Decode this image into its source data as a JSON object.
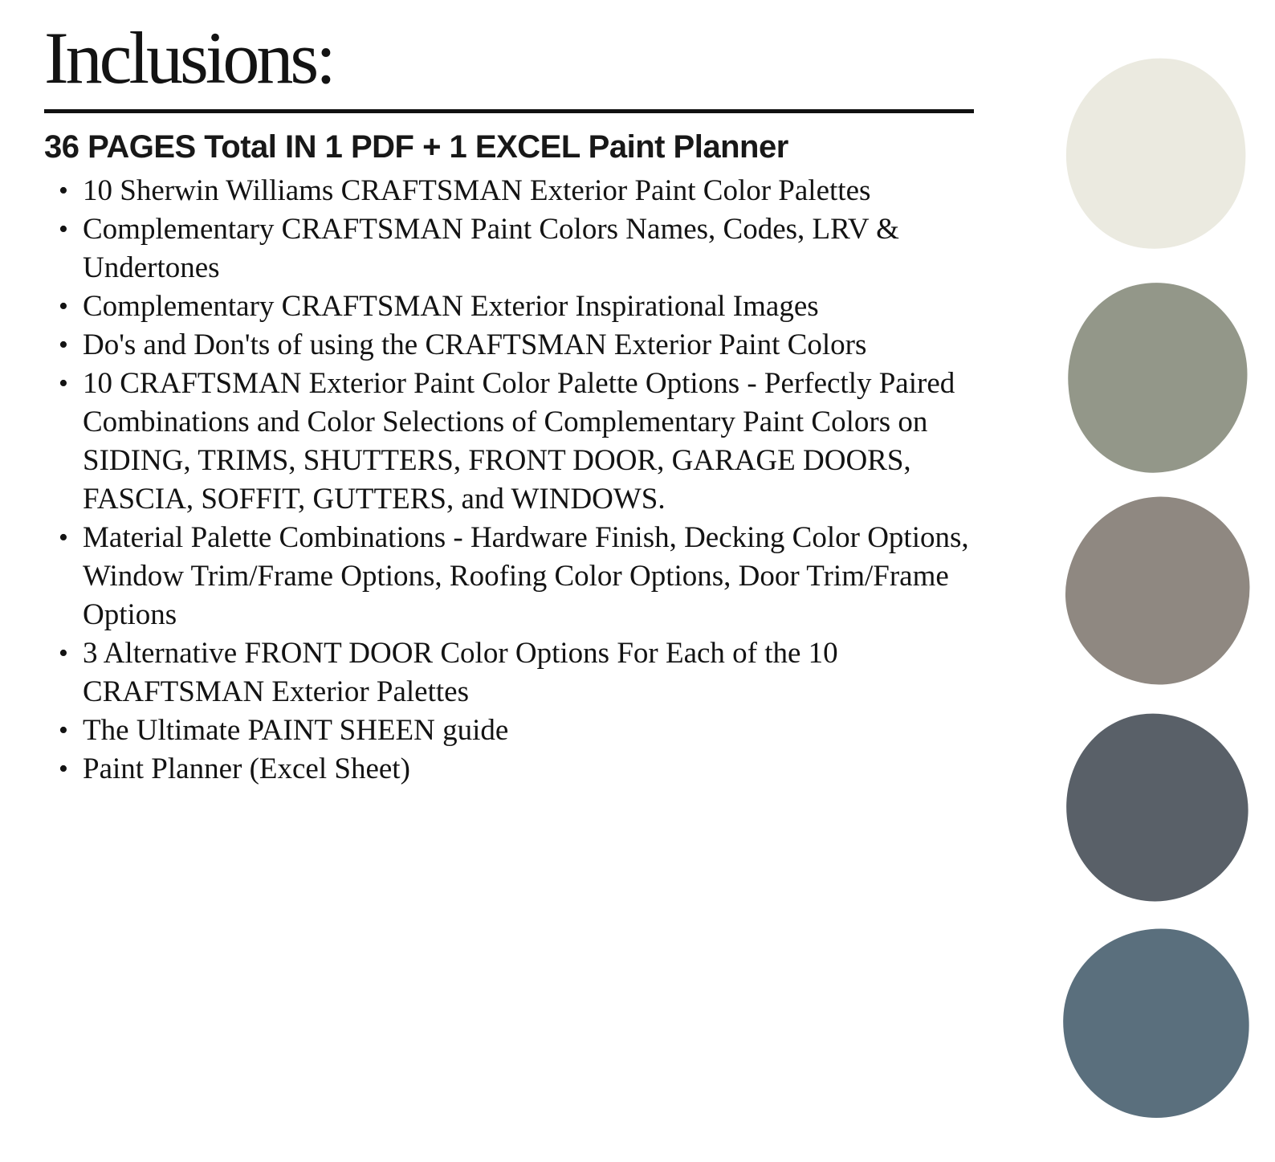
{
  "document": {
    "title": "Inclusions:",
    "heading": "36 PAGES Total IN 1 PDF + 1 EXCEL Paint Planner",
    "bullet_marker": "•",
    "bullets": [
      "10 Sherwin Williams CRAFTSMAN Exterior Paint Color Palettes",
      "Complementary CRAFTSMAN Paint Colors Names, Codes, LRV & Undertones",
      "Complementary CRAFTSMAN Exterior Inspirational Images",
      "Do's and Don'ts of using the CRAFTSMAN Exterior Paint Colors",
      "10 CRAFTSMAN Exterior Paint Color Palette Options - Perfectly Paired Combinations and Color Selections of Complementary Paint Colors on SIDING, TRIMS, SHUTTERS, FRONT DOOR, GARAGE DOORS, FASCIA, SOFFIT, GUTTERS, and WINDOWS.",
      "Material Palette Combinations - Hardware Finish, Decking Color Options, Window Trim/Frame Options, Roofing Color Options, Door Trim/Frame Options",
      "3 Alternative FRONT DOOR Color Options For Each of the 10 CRAFTSMAN Exterior Palettes",
      "The Ultimate PAINT SHEEN guide",
      "Paint Planner (Excel Sheet)"
    ]
  },
  "swatches": [
    {
      "name": "cream-off-white",
      "color": "#EBEAE0"
    },
    {
      "name": "sage-gray-green",
      "color": "#939789"
    },
    {
      "name": "warm-taupe-gray",
      "color": "#8F8881"
    },
    {
      "name": "dark-slate-blue-gray",
      "color": "#596068"
    },
    {
      "name": "slate-blue",
      "color": "#5A6F7D"
    }
  ],
  "colors": {
    "background": "#FFFFFF",
    "text": "#131313",
    "rule": "#111111"
  }
}
